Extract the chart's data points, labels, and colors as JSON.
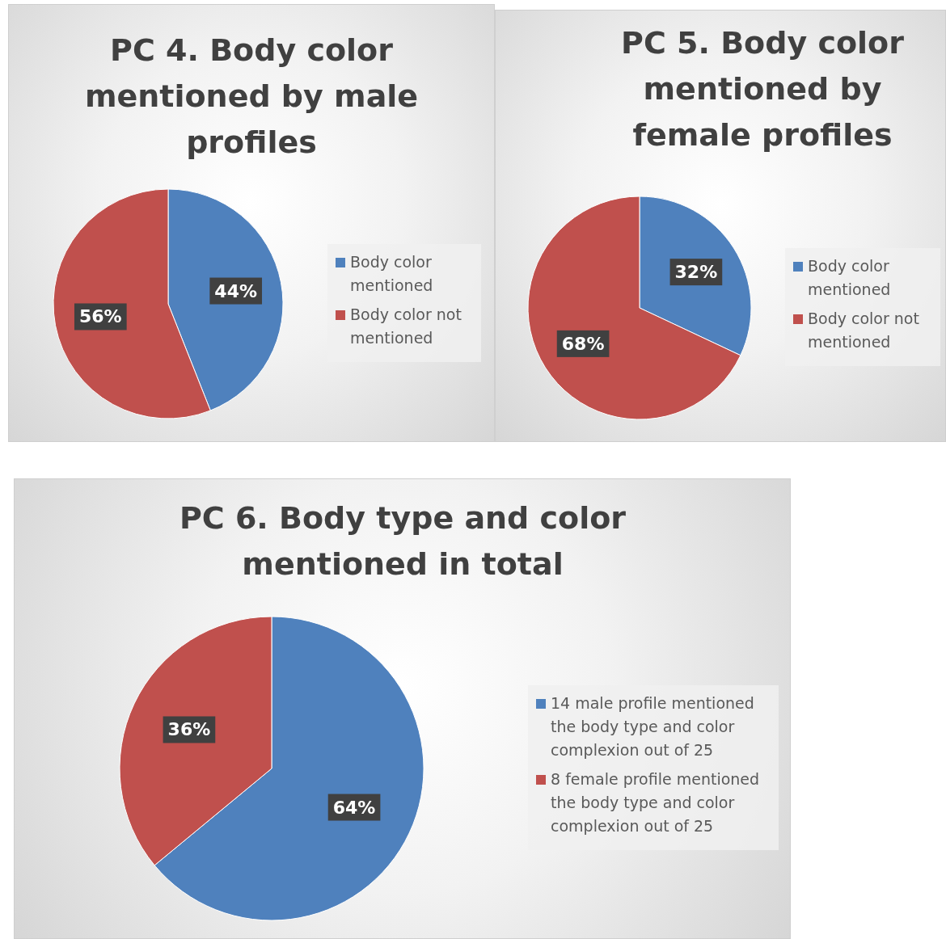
{
  "chart_data": [
    {
      "type": "pie",
      "title": "PC 4. Body color mentioned by male profiles",
      "categories": [
        "Body color mentioned",
        "Body color not mentioned"
      ],
      "values": [
        44,
        56
      ],
      "value_labels": [
        "44%",
        "56%"
      ],
      "colors": [
        "#4f81bd",
        "#c0504d"
      ],
      "legend": "right"
    },
    {
      "type": "pie",
      "title": "PC 5. Body color mentioned by female profiles",
      "categories": [
        "Body color mentioned",
        "Body color not mentioned"
      ],
      "values": [
        32,
        68
      ],
      "value_labels": [
        "32%",
        "68%"
      ],
      "colors": [
        "#4f81bd",
        "#c0504d"
      ],
      "legend": "right"
    },
    {
      "type": "pie",
      "title": "PC 6. Body type and color mentioned in total",
      "categories": [
        "14 male profile mentioned the body type and color complexion out of 25",
        "8 female profile mentioned the body type and color complexion out of 25"
      ],
      "values": [
        64,
        36
      ],
      "value_labels": [
        "64%",
        "36%"
      ],
      "colors": [
        "#4f81bd",
        "#c0504d"
      ],
      "legend": "right"
    }
  ]
}
